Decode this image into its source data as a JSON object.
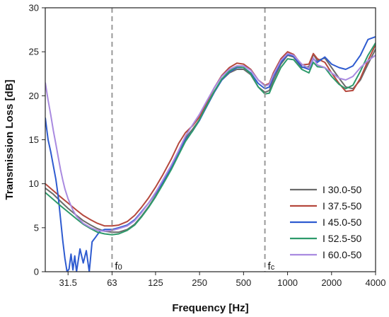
{
  "chart_data": {
    "type": "line",
    "title": "",
    "xlabel": "Frequency [Hz]",
    "ylabel": "Transmission Loss [dB]",
    "x_scale": "log",
    "xlim": [
      22,
      4000
    ],
    "ylim": [
      0,
      30
    ],
    "x_ticks": [
      {
        "value": 31.5,
        "label": "31.5"
      },
      {
        "value": 63,
        "label": "63"
      },
      {
        "value": 125,
        "label": "125"
      },
      {
        "value": 250,
        "label": "250"
      },
      {
        "value": 500,
        "label": "500"
      },
      {
        "value": 1000,
        "label": "1000"
      },
      {
        "value": 2000,
        "label": "2000"
      },
      {
        "value": 4000,
        "label": "4000"
      }
    ],
    "y_ticks": [
      0,
      5,
      10,
      15,
      20,
      25,
      30
    ],
    "grid": false,
    "legend_position": "bottom-right",
    "vertical_markers": [
      {
        "x": 63,
        "label": "f",
        "sub": "0"
      },
      {
        "x": 700,
        "label": "f",
        "sub": "c"
      }
    ],
    "series": [
      {
        "name": "I 30.0-50",
        "color": "#6b6b6b",
        "points": [
          [
            22,
            9.5
          ],
          [
            25,
            8.8
          ],
          [
            28,
            8.0
          ],
          [
            31.5,
            7.2
          ],
          [
            36,
            6.4
          ],
          [
            40,
            5.8
          ],
          [
            45,
            5.3
          ],
          [
            50,
            4.9
          ],
          [
            56,
            4.6
          ],
          [
            63,
            4.5
          ],
          [
            70,
            4.5
          ],
          [
            80,
            4.8
          ],
          [
            90,
            5.4
          ],
          [
            100,
            6.3
          ],
          [
            112,
            7.4
          ],
          [
            125,
            8.6
          ],
          [
            140,
            10.0
          ],
          [
            160,
            11.8
          ],
          [
            180,
            13.6
          ],
          [
            200,
            15.2
          ],
          [
            224,
            16.2
          ],
          [
            250,
            17.3
          ],
          [
            280,
            18.8
          ],
          [
            315,
            20.4
          ],
          [
            355,
            21.8
          ],
          [
            400,
            22.6
          ],
          [
            450,
            23.0
          ],
          [
            500,
            23.0
          ],
          [
            560,
            22.4
          ],
          [
            630,
            21.0
          ],
          [
            700,
            20.4
          ],
          [
            750,
            20.6
          ],
          [
            800,
            21.8
          ],
          [
            900,
            23.6
          ],
          [
            1000,
            24.6
          ],
          [
            1100,
            24.4
          ],
          [
            1250,
            23.2
          ],
          [
            1400,
            23.3
          ],
          [
            1500,
            24.7
          ],
          [
            1600,
            24.0
          ],
          [
            1800,
            24.3
          ],
          [
            2000,
            23.2
          ],
          [
            2250,
            22.0
          ],
          [
            2500,
            21.0
          ],
          [
            2800,
            20.8
          ],
          [
            3150,
            21.8
          ],
          [
            3550,
            23.6
          ],
          [
            4000,
            25.3
          ]
        ]
      },
      {
        "name": "I 37.5-50",
        "color": "#b5483d",
        "points": [
          [
            22,
            10.0
          ],
          [
            25,
            9.2
          ],
          [
            28,
            8.5
          ],
          [
            31.5,
            7.8
          ],
          [
            36,
            7.0
          ],
          [
            40,
            6.4
          ],
          [
            45,
            5.9
          ],
          [
            50,
            5.5
          ],
          [
            56,
            5.2
          ],
          [
            63,
            5.2
          ],
          [
            70,
            5.3
          ],
          [
            80,
            5.7
          ],
          [
            90,
            6.4
          ],
          [
            100,
            7.3
          ],
          [
            112,
            8.4
          ],
          [
            125,
            9.6
          ],
          [
            140,
            11.0
          ],
          [
            160,
            12.8
          ],
          [
            180,
            14.6
          ],
          [
            200,
            15.8
          ],
          [
            224,
            16.6
          ],
          [
            250,
            17.6
          ],
          [
            280,
            19.2
          ],
          [
            315,
            20.9
          ],
          [
            355,
            22.3
          ],
          [
            400,
            23.2
          ],
          [
            450,
            23.7
          ],
          [
            500,
            23.6
          ],
          [
            560,
            23.0
          ],
          [
            630,
            21.8
          ],
          [
            700,
            21.2
          ],
          [
            750,
            21.4
          ],
          [
            800,
            22.6
          ],
          [
            900,
            24.2
          ],
          [
            1000,
            25.0
          ],
          [
            1100,
            24.7
          ],
          [
            1250,
            23.5
          ],
          [
            1400,
            23.6
          ],
          [
            1500,
            24.8
          ],
          [
            1600,
            24.2
          ],
          [
            1800,
            23.8
          ],
          [
            2000,
            22.6
          ],
          [
            2250,
            21.4
          ],
          [
            2500,
            20.5
          ],
          [
            2800,
            20.6
          ],
          [
            3150,
            22.0
          ],
          [
            3550,
            24.0
          ],
          [
            4000,
            25.8
          ]
        ]
      },
      {
        "name": "I 45.0-50",
        "color": "#2e5bd0",
        "points": [
          [
            22,
            17.5
          ],
          [
            23,
            15.0
          ],
          [
            24,
            13.6
          ],
          [
            25,
            12.0
          ],
          [
            26,
            10.5
          ],
          [
            27,
            8.5
          ],
          [
            28,
            6.0
          ],
          [
            29,
            3.5
          ],
          [
            30,
            1.5
          ],
          [
            31,
            0.0
          ],
          [
            32,
            0.3
          ],
          [
            33,
            2.0
          ],
          [
            34,
            0.2
          ],
          [
            35,
            1.8
          ],
          [
            36,
            0.0
          ],
          [
            38,
            2.6
          ],
          [
            40,
            1.0
          ],
          [
            42,
            2.4
          ],
          [
            44,
            0.0
          ],
          [
            46,
            3.4
          ],
          [
            48,
            3.8
          ],
          [
            52,
            4.6
          ],
          [
            56,
            4.8
          ],
          [
            63,
            4.8
          ],
          [
            70,
            5.0
          ],
          [
            80,
            5.3
          ],
          [
            90,
            5.9
          ],
          [
            100,
            6.8
          ],
          [
            112,
            7.8
          ],
          [
            125,
            8.9
          ],
          [
            140,
            10.2
          ],
          [
            160,
            11.9
          ],
          [
            180,
            13.5
          ],
          [
            200,
            15.0
          ],
          [
            224,
            16.0
          ],
          [
            250,
            17.2
          ],
          [
            280,
            18.8
          ],
          [
            315,
            20.4
          ],
          [
            355,
            21.8
          ],
          [
            400,
            22.7
          ],
          [
            450,
            23.2
          ],
          [
            500,
            23.2
          ],
          [
            560,
            22.6
          ],
          [
            630,
            21.4
          ],
          [
            700,
            20.8
          ],
          [
            750,
            21.0
          ],
          [
            800,
            22.2
          ],
          [
            900,
            23.8
          ],
          [
            1000,
            24.7
          ],
          [
            1100,
            24.5
          ],
          [
            1250,
            23.3
          ],
          [
            1400,
            23.0
          ],
          [
            1500,
            24.2
          ],
          [
            1600,
            23.8
          ],
          [
            1800,
            24.4
          ],
          [
            2000,
            23.6
          ],
          [
            2250,
            23.2
          ],
          [
            2500,
            23.0
          ],
          [
            2800,
            23.4
          ],
          [
            3150,
            24.6
          ],
          [
            3550,
            26.4
          ],
          [
            4000,
            26.7
          ]
        ]
      },
      {
        "name": "I 52.5-50",
        "color": "#2e9a6b",
        "points": [
          [
            22,
            9.0
          ],
          [
            25,
            8.2
          ],
          [
            28,
            7.5
          ],
          [
            31.5,
            6.8
          ],
          [
            36,
            6.0
          ],
          [
            40,
            5.4
          ],
          [
            45,
            4.9
          ],
          [
            50,
            4.5
          ],
          [
            56,
            4.3
          ],
          [
            63,
            4.2
          ],
          [
            70,
            4.3
          ],
          [
            80,
            4.7
          ],
          [
            90,
            5.3
          ],
          [
            100,
            6.2
          ],
          [
            112,
            7.3
          ],
          [
            125,
            8.5
          ],
          [
            140,
            9.9
          ],
          [
            160,
            11.6
          ],
          [
            180,
            13.3
          ],
          [
            200,
            14.8
          ],
          [
            224,
            16.0
          ],
          [
            250,
            17.3
          ],
          [
            280,
            18.9
          ],
          [
            315,
            20.5
          ],
          [
            355,
            21.9
          ],
          [
            400,
            22.8
          ],
          [
            450,
            23.3
          ],
          [
            500,
            23.2
          ],
          [
            560,
            22.5
          ],
          [
            630,
            21.0
          ],
          [
            700,
            20.2
          ],
          [
            750,
            20.3
          ],
          [
            800,
            21.4
          ],
          [
            900,
            23.2
          ],
          [
            1000,
            24.2
          ],
          [
            1100,
            24.1
          ],
          [
            1250,
            23.0
          ],
          [
            1400,
            22.6
          ],
          [
            1500,
            23.8
          ],
          [
            1600,
            23.3
          ],
          [
            1800,
            23.2
          ],
          [
            2000,
            22.2
          ],
          [
            2250,
            21.3
          ],
          [
            2500,
            20.8
          ],
          [
            2800,
            21.2
          ],
          [
            3150,
            22.8
          ],
          [
            3550,
            24.6
          ],
          [
            4000,
            26.0
          ]
        ]
      },
      {
        "name": "I 60.0-50",
        "color": "#a98ae0",
        "points": [
          [
            22,
            21.5
          ],
          [
            23,
            19.5
          ],
          [
            24,
            17.8
          ],
          [
            25,
            16.0
          ],
          [
            26,
            14.5
          ],
          [
            27,
            13.0
          ],
          [
            28,
            11.6
          ],
          [
            29,
            10.4
          ],
          [
            30,
            9.4
          ],
          [
            31.5,
            8.3
          ],
          [
            34,
            7.0
          ],
          [
            36,
            6.3
          ],
          [
            40,
            5.5
          ],
          [
            45,
            5.0
          ],
          [
            50,
            4.7
          ],
          [
            56,
            4.6
          ],
          [
            63,
            4.7
          ],
          [
            70,
            4.9
          ],
          [
            80,
            5.2
          ],
          [
            90,
            5.8
          ],
          [
            100,
            6.7
          ],
          [
            112,
            7.8
          ],
          [
            125,
            9.0
          ],
          [
            140,
            10.4
          ],
          [
            160,
            12.1
          ],
          [
            180,
            13.8
          ],
          [
            200,
            15.4
          ],
          [
            224,
            16.7
          ],
          [
            250,
            17.9
          ],
          [
            280,
            19.4
          ],
          [
            315,
            20.9
          ],
          [
            355,
            22.2
          ],
          [
            400,
            23.0
          ],
          [
            450,
            23.4
          ],
          [
            500,
            23.4
          ],
          [
            560,
            22.9
          ],
          [
            630,
            21.8
          ],
          [
            700,
            21.1
          ],
          [
            750,
            21.3
          ],
          [
            800,
            22.4
          ],
          [
            900,
            24.0
          ],
          [
            1000,
            24.8
          ],
          [
            1100,
            24.6
          ],
          [
            1250,
            23.6
          ],
          [
            1400,
            23.1
          ],
          [
            1500,
            24.3
          ],
          [
            1600,
            23.5
          ],
          [
            1800,
            23.2
          ],
          [
            2000,
            22.6
          ],
          [
            2250,
            22.0
          ],
          [
            2500,
            21.8
          ],
          [
            2800,
            22.2
          ],
          [
            3150,
            23.2
          ],
          [
            3550,
            24.0
          ],
          [
            4000,
            24.6
          ]
        ]
      }
    ]
  }
}
